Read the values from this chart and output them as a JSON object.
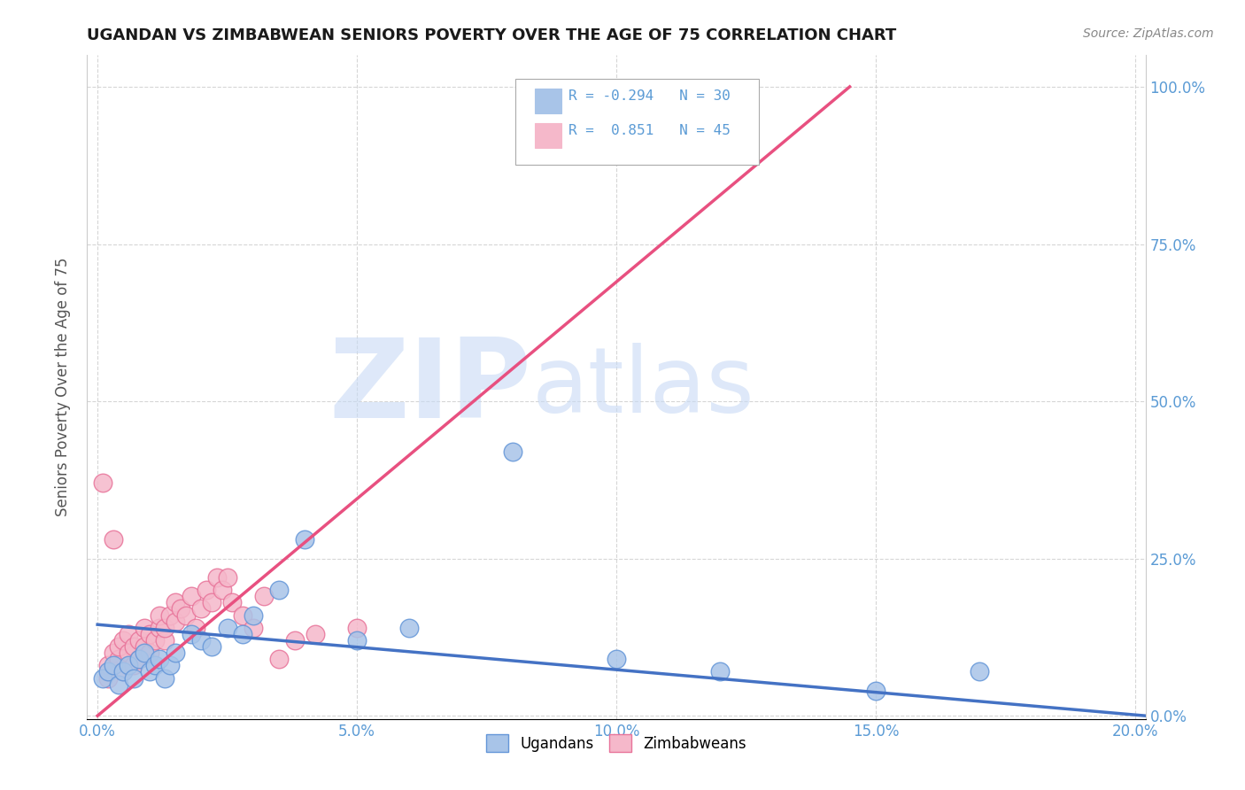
{
  "title": "UGANDAN VS ZIMBABWEAN SENIORS POVERTY OVER THE AGE OF 75 CORRELATION CHART",
  "source": "Source: ZipAtlas.com",
  "ylabel": "Seniors Poverty Over the Age of 75",
  "xlim": [
    -0.002,
    0.202
  ],
  "ylim": [
    -0.005,
    1.05
  ],
  "xticks": [
    0.0,
    0.05,
    0.1,
    0.15,
    0.2
  ],
  "yticks": [
    0.0,
    0.25,
    0.5,
    0.75,
    1.0
  ],
  "xticklabels": [
    "0.0%",
    "5.0%",
    "10.0%",
    "15.0%",
    "20.0%"
  ],
  "yticklabels_right": [
    "0.0%",
    "25.0%",
    "50.0%",
    "75.0%",
    "100.0%"
  ],
  "ugandan_color": "#a8c4e8",
  "zimbabwean_color": "#f5b8ca",
  "ugandan_edge": "#6496d8",
  "zimbabwean_edge": "#e8749a",
  "line_ugandan_color": "#4472c4",
  "line_zimbabwean_color": "#e85080",
  "ugandan_R": -0.294,
  "ugandan_N": 30,
  "zimbabwean_R": 0.851,
  "zimbabwean_N": 45,
  "background_color": "#ffffff",
  "grid_color": "#cccccc",
  "watermark_zip": "ZIP",
  "watermark_atlas": "atlas",
  "watermark_color_zip": "#c8daf5",
  "watermark_color_atlas": "#c8daf5",
  "tick_color": "#5b9bd5",
  "ugandan_x": [
    0.001,
    0.002,
    0.003,
    0.004,
    0.005,
    0.006,
    0.007,
    0.008,
    0.009,
    0.01,
    0.011,
    0.012,
    0.013,
    0.014,
    0.015,
    0.018,
    0.02,
    0.022,
    0.025,
    0.028,
    0.03,
    0.035,
    0.04,
    0.05,
    0.06,
    0.08,
    0.1,
    0.12,
    0.15,
    0.17
  ],
  "ugandan_y": [
    0.06,
    0.07,
    0.08,
    0.05,
    0.07,
    0.08,
    0.06,
    0.09,
    0.1,
    0.07,
    0.08,
    0.09,
    0.06,
    0.08,
    0.1,
    0.13,
    0.12,
    0.11,
    0.14,
    0.13,
    0.16,
    0.2,
    0.28,
    0.12,
    0.14,
    0.42,
    0.09,
    0.07,
    0.04,
    0.07
  ],
  "zimbabwean_x": [
    0.001,
    0.002,
    0.002,
    0.003,
    0.003,
    0.004,
    0.004,
    0.005,
    0.005,
    0.006,
    0.006,
    0.007,
    0.007,
    0.008,
    0.008,
    0.009,
    0.009,
    0.01,
    0.01,
    0.011,
    0.012,
    0.012,
    0.013,
    0.013,
    0.014,
    0.015,
    0.015,
    0.016,
    0.017,
    0.018,
    0.019,
    0.02,
    0.021,
    0.022,
    0.023,
    0.024,
    0.025,
    0.026,
    0.028,
    0.03,
    0.032,
    0.035,
    0.038,
    0.042,
    0.05
  ],
  "zimbabwean_y": [
    0.37,
    0.06,
    0.08,
    0.1,
    0.28,
    0.09,
    0.11,
    0.07,
    0.12,
    0.1,
    0.13,
    0.08,
    0.11,
    0.09,
    0.12,
    0.11,
    0.14,
    0.1,
    0.13,
    0.12,
    0.14,
    0.16,
    0.12,
    0.14,
    0.16,
    0.15,
    0.18,
    0.17,
    0.16,
    0.19,
    0.14,
    0.17,
    0.2,
    0.18,
    0.22,
    0.2,
    0.22,
    0.18,
    0.16,
    0.14,
    0.19,
    0.09,
    0.12,
    0.13,
    0.14
  ],
  "zim_line_x0": 0.0,
  "zim_line_y0": 0.0,
  "zim_line_x1": 0.145,
  "zim_line_y1": 1.0,
  "ug_line_x0": 0.0,
  "ug_line_y0": 0.145,
  "ug_line_x1": 0.202,
  "ug_line_y1": 0.0
}
